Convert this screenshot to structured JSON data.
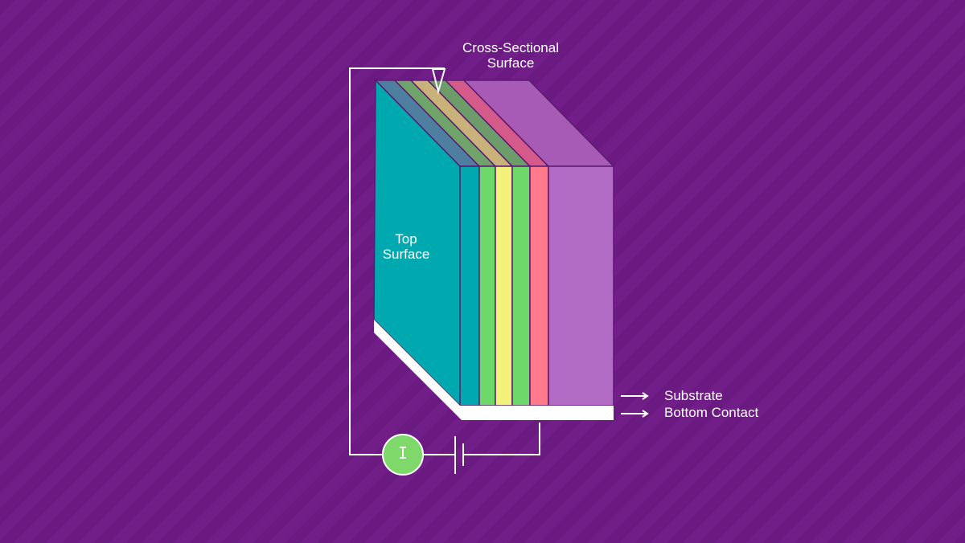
{
  "labels": {
    "cross_section": [
      "Cross-Sectional",
      "Surface"
    ],
    "top_surface": [
      "Top",
      "Surface"
    ],
    "substrate": "Substrate",
    "bottom_contact": "Bottom Contact",
    "meter_symbol": "I"
  },
  "colors": {
    "background": "#6b1a82",
    "layers_front": [
      "#00a9b0",
      "#6fd86a",
      "#f2f27a",
      "#6fd86a",
      "#ff7a8c",
      "#b26cc6"
    ],
    "layers_top": [
      "#4f7fa0",
      "#6fa36a",
      "#c9b27a",
      "#6c9c6a",
      "#d45a8a",
      "#a85bb4"
    ],
    "top_surface": "#00a9b0",
    "contact": "#ffffff",
    "meter": "#7ed96a"
  }
}
